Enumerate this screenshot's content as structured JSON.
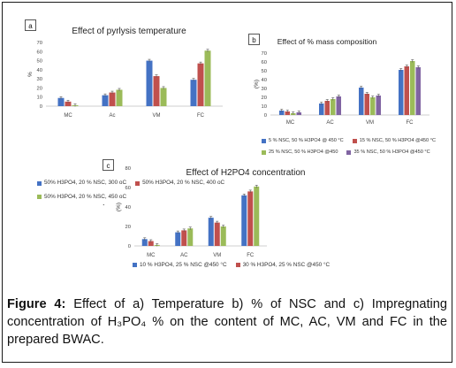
{
  "colors": {
    "blue": "#4472c4",
    "red": "#c0504d",
    "green": "#9bbb59",
    "purple": "#8064a2"
  },
  "chart_data": [
    {
      "type": "bar",
      "label": "a",
      "title": "Effect of pyrlysis temperature",
      "ylabel": "%",
      "ylim": [
        0,
        70
      ],
      "yticks": [
        0,
        10,
        20,
        30,
        40,
        50,
        60,
        70
      ],
      "categories": [
        "MC",
        "Ac",
        "VM",
        "FC"
      ],
      "series": [
        {
          "name": "50% H3PO4, 20 % NSC, 300 oC",
          "color": "#4472c4",
          "values": [
            9,
            12,
            50,
            29
          ]
        },
        {
          "name": "50% H3PO4, 20 % NSC, 400 oC",
          "color": "#c0504d",
          "values": [
            5,
            15,
            33,
            47
          ]
        },
        {
          "name": "50% H3PO4, 20 % NSC, 450 oC",
          "color": "#9bbb59",
          "values": [
            1,
            18,
            20,
            61
          ]
        }
      ],
      "legend": "bottom"
    },
    {
      "type": "bar",
      "label": "b",
      "title": "Effect of % mass composition",
      "ylabel": "(%)",
      "ylim": [
        0,
        70
      ],
      "yticks": [
        0,
        10,
        20,
        30,
        40,
        50,
        60,
        70
      ],
      "categories": [
        "MC",
        "AC",
        "VM",
        "FC"
      ],
      "series": [
        {
          "name": "5 % NSC, 50 % H3PO4 @ 450 °C",
          "color": "#4472c4",
          "values": [
            5,
            13,
            31,
            51
          ]
        },
        {
          "name": "15 % NSC, 50 % H3PO4 @450 °C",
          "color": "#c0504d",
          "values": [
            4,
            16,
            24,
            55
          ]
        },
        {
          "name": "25 % NSC, 50 % H3PO4 @450",
          "color": "#9bbb59",
          "values": [
            2,
            18,
            20,
            61
          ]
        },
        {
          "name": "35 % NSC, 50 % H3PO4 @450 °C",
          "color": "#8064a2",
          "values": [
            3,
            21,
            22,
            54
          ]
        }
      ],
      "legend": "bottom"
    },
    {
      "type": "bar",
      "label": "c",
      "title": "Effect of H2PO4 concentration",
      "ylabel": "(%)",
      "ylim": [
        0,
        80
      ],
      "yticks": [
        0,
        20,
        40,
        60,
        80
      ],
      "categories": [
        "MC",
        "AC",
        "VM",
        "FC"
      ],
      "series": [
        {
          "name": "10 % H3PO4, 25 % NSC @450 °C",
          "color": "#4472c4",
          "values": [
            7,
            14,
            29,
            52
          ]
        },
        {
          "name": "30 % H3PO4, 25 % NSC @450 °C",
          "color": "#c0504d",
          "values": [
            5,
            16,
            24,
            56
          ]
        },
        {
          "name": "",
          "color": "#9bbb59",
          "values": [
            1,
            18,
            20,
            61
          ]
        }
      ],
      "legend": "bottom"
    }
  ],
  "caption": {
    "figure_label": "Figure 4:",
    "text": " Effect of a) Temperature b) % of NSC and c) Impregnating concentration of H₃PO₄ % on the content of MC, AC, VM and FC in the prepared BWAC."
  },
  "dot": "."
}
